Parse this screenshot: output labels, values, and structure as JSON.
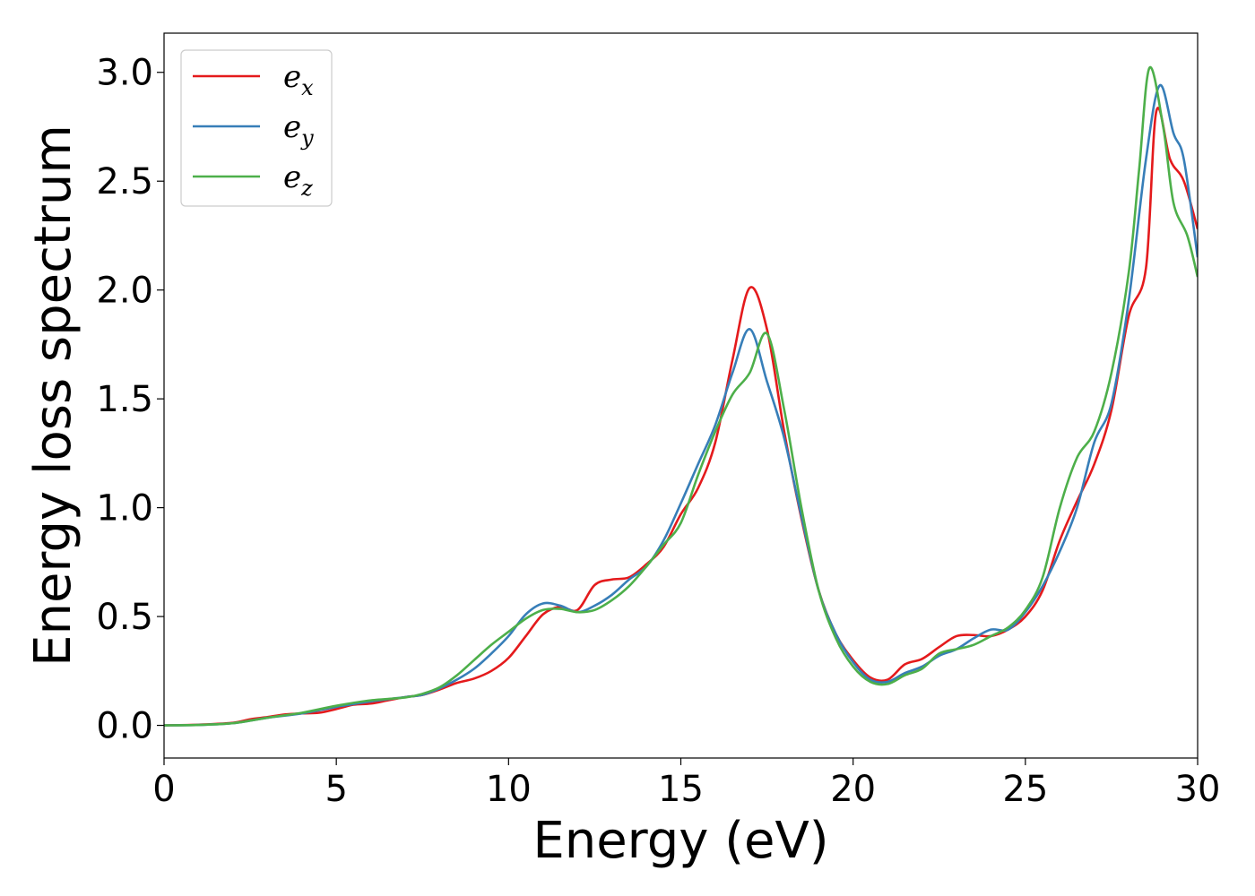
{
  "chart_data": {
    "type": "line",
    "xlabel": "Energy (eV)",
    "ylabel": "Energy loss spectrum",
    "xlim": [
      0,
      30
    ],
    "ylim": [
      -0.15,
      3.18
    ],
    "xticks": [
      "0",
      "5",
      "10",
      "15",
      "20",
      "25",
      "30"
    ],
    "yticks": [
      "0.0",
      "0.5",
      "1.0",
      "1.5",
      "2.0",
      "2.5",
      "3.0"
    ],
    "grid": false,
    "legend_position": "top-left",
    "series": [
      {
        "name": "e",
        "subscript": "x",
        "color": "#e41a1c",
        "points": [
          [
            0,
            0
          ],
          [
            1,
            0.003
          ],
          [
            2,
            0.012
          ],
          [
            2.5,
            0.028
          ],
          [
            3,
            0.038
          ],
          [
            3.5,
            0.05
          ],
          [
            4,
            0.055
          ],
          [
            4.5,
            0.058
          ],
          [
            5,
            0.075
          ],
          [
            5.5,
            0.095
          ],
          [
            6,
            0.1
          ],
          [
            6.5,
            0.115
          ],
          [
            7,
            0.13
          ],
          [
            7.5,
            0.14
          ],
          [
            8,
            0.165
          ],
          [
            8.5,
            0.195
          ],
          [
            9,
            0.215
          ],
          [
            9.5,
            0.25
          ],
          [
            10,
            0.31
          ],
          [
            10.5,
            0.41
          ],
          [
            11,
            0.51
          ],
          [
            11.5,
            0.545
          ],
          [
            12,
            0.53
          ],
          [
            12.5,
            0.645
          ],
          [
            13,
            0.67
          ],
          [
            13.5,
            0.68
          ],
          [
            14,
            0.74
          ],
          [
            14.5,
            0.82
          ],
          [
            15,
            0.97
          ],
          [
            15.5,
            1.09
          ],
          [
            16,
            1.3
          ],
          [
            16.5,
            1.68
          ],
          [
            17,
            2.01
          ],
          [
            17.5,
            1.82
          ],
          [
            18,
            1.35
          ],
          [
            18.5,
            0.95
          ],
          [
            19,
            0.62
          ],
          [
            19.5,
            0.42
          ],
          [
            20,
            0.3
          ],
          [
            20.5,
            0.22
          ],
          [
            21,
            0.21
          ],
          [
            21.5,
            0.28
          ],
          [
            22,
            0.305
          ],
          [
            22.5,
            0.36
          ],
          [
            23,
            0.41
          ],
          [
            23.5,
            0.415
          ],
          [
            24,
            0.41
          ],
          [
            24.5,
            0.44
          ],
          [
            25,
            0.5
          ],
          [
            25.5,
            0.62
          ],
          [
            26,
            0.85
          ],
          [
            26.5,
            1.03
          ],
          [
            27,
            1.2
          ],
          [
            27.5,
            1.45
          ],
          [
            28,
            1.88
          ],
          [
            28.5,
            2.1
          ],
          [
            28.8,
            2.82
          ],
          [
            29.2,
            2.6
          ],
          [
            29.6,
            2.5
          ],
          [
            30,
            2.28
          ]
        ]
      },
      {
        "name": "e",
        "subscript": "y",
        "color": "#377eb8",
        "points": [
          [
            0,
            0
          ],
          [
            1,
            0.002
          ],
          [
            2,
            0.01
          ],
          [
            3,
            0.035
          ],
          [
            4,
            0.055
          ],
          [
            5,
            0.085
          ],
          [
            6,
            0.11
          ],
          [
            7,
            0.13
          ],
          [
            7.5,
            0.14
          ],
          [
            8,
            0.17
          ],
          [
            8.5,
            0.21
          ],
          [
            9,
            0.26
          ],
          [
            9.5,
            0.33
          ],
          [
            10,
            0.41
          ],
          [
            10.5,
            0.51
          ],
          [
            11,
            0.56
          ],
          [
            11.5,
            0.55
          ],
          [
            12,
            0.52
          ],
          [
            12.5,
            0.55
          ],
          [
            13,
            0.6
          ],
          [
            13.5,
            0.67
          ],
          [
            14,
            0.73
          ],
          [
            14.5,
            0.85
          ],
          [
            15,
            1.02
          ],
          [
            15.5,
            1.2
          ],
          [
            16,
            1.38
          ],
          [
            16.5,
            1.62
          ],
          [
            17,
            1.82
          ],
          [
            17.5,
            1.58
          ],
          [
            18,
            1.32
          ],
          [
            18.5,
            0.96
          ],
          [
            19,
            0.62
          ],
          [
            19.5,
            0.42
          ],
          [
            20,
            0.29
          ],
          [
            20.5,
            0.21
          ],
          [
            21,
            0.2
          ],
          [
            21.5,
            0.24
          ],
          [
            22,
            0.27
          ],
          [
            22.5,
            0.32
          ],
          [
            23,
            0.35
          ],
          [
            23.5,
            0.4
          ],
          [
            24,
            0.44
          ],
          [
            24.5,
            0.44
          ],
          [
            25,
            0.52
          ],
          [
            25.5,
            0.64
          ],
          [
            26,
            0.8
          ],
          [
            26.5,
            1.0
          ],
          [
            27,
            1.3
          ],
          [
            27.5,
            1.48
          ],
          [
            28,
            1.95
          ],
          [
            28.5,
            2.6
          ],
          [
            28.9,
            2.94
          ],
          [
            29.3,
            2.72
          ],
          [
            29.6,
            2.6
          ],
          [
            30,
            2.15
          ]
        ]
      },
      {
        "name": "e",
        "subscript": "z",
        "color": "#4daf4a",
        "points": [
          [
            0,
            0
          ],
          [
            1,
            0.002
          ],
          [
            2,
            0.01
          ],
          [
            3,
            0.035
          ],
          [
            4,
            0.058
          ],
          [
            5,
            0.09
          ],
          [
            6,
            0.115
          ],
          [
            7,
            0.128
          ],
          [
            7.5,
            0.145
          ],
          [
            8,
            0.175
          ],
          [
            8.5,
            0.23
          ],
          [
            9,
            0.3
          ],
          [
            9.5,
            0.37
          ],
          [
            10,
            0.43
          ],
          [
            10.5,
            0.49
          ],
          [
            11,
            0.53
          ],
          [
            11.5,
            0.535
          ],
          [
            12,
            0.52
          ],
          [
            12.5,
            0.53
          ],
          [
            13,
            0.575
          ],
          [
            13.5,
            0.64
          ],
          [
            14,
            0.73
          ],
          [
            14.5,
            0.83
          ],
          [
            15,
            0.93
          ],
          [
            15.5,
            1.15
          ],
          [
            16,
            1.35
          ],
          [
            16.5,
            1.52
          ],
          [
            17,
            1.62
          ],
          [
            17.5,
            1.8
          ],
          [
            18,
            1.45
          ],
          [
            18.5,
            1.0
          ],
          [
            19,
            0.62
          ],
          [
            19.5,
            0.4
          ],
          [
            20,
            0.27
          ],
          [
            20.5,
            0.2
          ],
          [
            21,
            0.19
          ],
          [
            21.5,
            0.23
          ],
          [
            22,
            0.26
          ],
          [
            22.5,
            0.33
          ],
          [
            23,
            0.35
          ],
          [
            23.5,
            0.37
          ],
          [
            24,
            0.41
          ],
          [
            24.5,
            0.45
          ],
          [
            25,
            0.53
          ],
          [
            25.5,
            0.68
          ],
          [
            26,
            1.0
          ],
          [
            26.5,
            1.23
          ],
          [
            27,
            1.35
          ],
          [
            27.5,
            1.62
          ],
          [
            28,
            2.08
          ],
          [
            28.3,
            2.55
          ],
          [
            28.6,
            3.02
          ],
          [
            29,
            2.75
          ],
          [
            29.3,
            2.4
          ],
          [
            29.7,
            2.25
          ],
          [
            30,
            2.06
          ]
        ]
      }
    ]
  }
}
